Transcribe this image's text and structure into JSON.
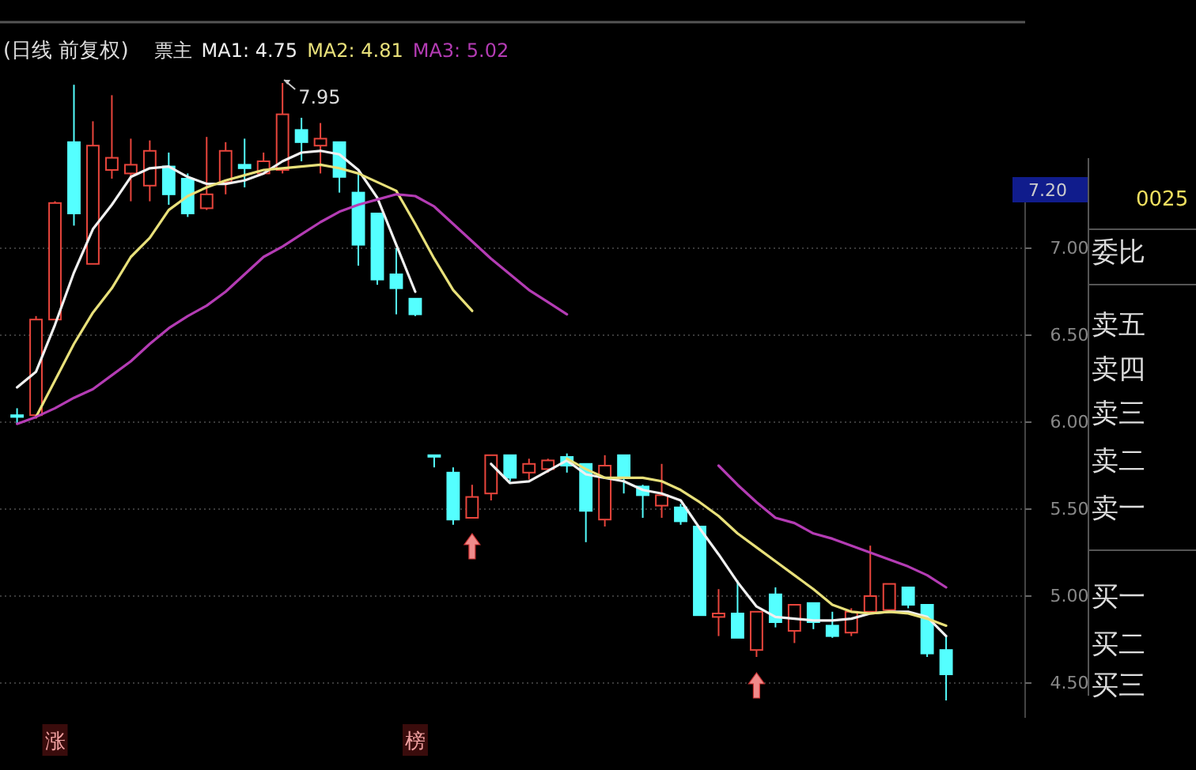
{
  "chart_data": {
    "type": "candlestick",
    "title": "(日线 前复权)",
    "categories": [
      null,
      null,
      null,
      null,
      null,
      null,
      null,
      null,
      null,
      null,
      null,
      null,
      null,
      null,
      null,
      null,
      null,
      null,
      null,
      null,
      null,
      null,
      null,
      null,
      null,
      null,
      null,
      null,
      null,
      null,
      null,
      null,
      null,
      null,
      null,
      null,
      null,
      null,
      null,
      null,
      null,
      null,
      null,
      null,
      null,
      null,
      null,
      null,
      null,
      null
    ],
    "ohlc": [
      [
        6.04,
        6.08,
        5.99,
        6.03
      ],
      [
        6.04,
        6.61,
        6.02,
        6.59
      ],
      [
        6.59,
        7.27,
        6.59,
        7.26
      ],
      [
        7.61,
        7.94,
        7.13,
        7.2
      ],
      [
        6.91,
        7.73,
        6.91,
        7.59
      ],
      [
        7.45,
        7.88,
        7.4,
        7.52
      ],
      [
        7.43,
        7.63,
        7.27,
        7.48
      ],
      [
        7.36,
        7.62,
        7.27,
        7.56
      ],
      [
        7.47,
        7.55,
        7.25,
        7.31
      ],
      [
        7.4,
        7.43,
        7.18,
        7.2
      ],
      [
        7.23,
        7.64,
        7.22,
        7.31
      ],
      [
        7.38,
        7.61,
        7.31,
        7.56
      ],
      [
        7.48,
        7.63,
        7.35,
        7.46
      ],
      [
        7.43,
        7.55,
        7.43,
        7.5
      ],
      [
        7.45,
        7.95,
        7.43,
        7.77
      ],
      [
        7.68,
        7.75,
        7.5,
        7.61
      ],
      [
        7.59,
        7.72,
        7.43,
        7.63
      ],
      [
        7.61,
        7.61,
        7.32,
        7.41
      ],
      [
        7.32,
        7.43,
        6.9,
        7.02
      ],
      [
        7.2,
        7.2,
        6.79,
        6.82
      ],
      [
        6.85,
        7.0,
        6.62,
        6.77
      ],
      [
        6.71,
        6.71,
        6.61,
        6.62
      ],
      [
        5.81,
        5.81,
        5.74,
        5.81
      ],
      [
        5.71,
        5.74,
        5.41,
        5.44
      ],
      [
        5.45,
        5.64,
        5.45,
        5.57
      ],
      [
        5.59,
        5.81,
        5.55,
        5.81
      ],
      [
        5.81,
        5.81,
        5.66,
        5.68
      ],
      [
        5.71,
        5.79,
        5.67,
        5.76
      ],
      [
        5.73,
        5.79,
        5.71,
        5.78
      ],
      [
        5.8,
        5.82,
        5.71,
        5.75
      ],
      [
        5.76,
        5.76,
        5.31,
        5.49
      ],
      [
        5.44,
        5.81,
        5.4,
        5.75
      ],
      [
        5.81,
        5.81,
        5.59,
        5.68
      ],
      [
        5.63,
        5.64,
        5.45,
        5.58
      ],
      [
        5.52,
        5.76,
        5.45,
        5.58
      ],
      [
        5.51,
        5.53,
        5.41,
        5.43
      ],
      [
        5.4,
        5.4,
        4.89,
        4.89
      ],
      [
        4.88,
        5.04,
        4.77,
        4.9
      ],
      [
        4.9,
        5.09,
        4.76,
        4.76
      ],
      [
        4.69,
        4.91,
        4.65,
        4.91
      ],
      [
        5.01,
        5.05,
        4.82,
        4.85
      ],
      [
        4.8,
        4.95,
        4.73,
        4.95
      ],
      [
        4.96,
        4.96,
        4.81,
        4.85
      ],
      [
        4.83,
        4.91,
        4.76,
        4.77
      ],
      [
        4.79,
        4.93,
        4.77,
        4.91
      ],
      [
        4.91,
        5.29,
        4.91,
        5.0
      ],
      [
        4.92,
        5.07,
        4.91,
        5.07
      ],
      [
        5.05,
        5.05,
        4.93,
        4.95
      ],
      [
        4.95,
        4.95,
        4.65,
        4.67
      ],
      [
        4.69,
        4.77,
        4.4,
        4.55
      ]
    ],
    "colors": [
      "#54ffff",
      "#e8453c",
      "#e8453c",
      "#54ffff",
      "#e8453c",
      "#e8453c",
      "#e8453c",
      "#e8453c",
      "#54ffff",
      "#54ffff",
      "#e8453c",
      "#e8453c",
      "#54ffff",
      "#e8453c",
      "#e8453c",
      "#54ffff",
      "#e8453c",
      "#54ffff",
      "#54ffff",
      "#54ffff",
      "#54ffff",
      "#54ffff",
      "#54ffff",
      "#54ffff",
      "#e8453c",
      "#e8453c",
      "#54ffff",
      "#e8453c",
      "#e8453c",
      "#54ffff",
      "#54ffff",
      "#e8453c",
      "#54ffff",
      "#54ffff",
      "#e8453c",
      "#54ffff",
      "#54ffff",
      "#e8453c",
      "#54ffff",
      "#e8453c",
      "#54ffff",
      "#e8453c",
      "#54ffff",
      "#54ffff",
      "#e8453c",
      "#e8453c",
      "#e8453c",
      "#54ffff",
      "#54ffff",
      "#54ffff"
    ],
    "series": [
      {
        "name": "MA1: 4.75",
        "type": "line",
        "color": "#f0f0f0",
        "values": [
          6.2,
          6.29,
          6.56,
          6.86,
          7.11,
          7.25,
          7.41,
          7.46,
          7.47,
          7.41,
          7.37,
          7.37,
          7.39,
          7.43,
          7.5,
          7.55,
          7.56,
          7.54,
          7.45,
          7.29,
          7.02,
          6.75,
          null,
          null,
          null,
          5.76,
          5.65,
          5.66,
          5.72,
          5.78,
          5.7,
          5.68,
          5.66,
          5.61,
          5.59,
          5.55,
          5.39,
          5.24,
          5.08,
          4.94,
          4.88,
          4.87,
          4.86,
          4.86,
          4.87,
          4.9,
          4.91,
          4.91,
          4.88,
          4.77
        ]
      },
      {
        "name": "MA2: 4.81",
        "type": "line",
        "color": "#e8e07a",
        "values": [
          null,
          6.03,
          6.24,
          6.45,
          6.63,
          6.77,
          6.95,
          7.06,
          7.22,
          7.3,
          7.35,
          7.39,
          7.42,
          7.45,
          7.46,
          7.47,
          7.48,
          7.46,
          7.43,
          7.38,
          7.33,
          7.14,
          6.94,
          6.76,
          6.64,
          null,
          null,
          null,
          null,
          5.79,
          5.73,
          5.68,
          5.68,
          5.68,
          5.66,
          5.61,
          5.54,
          5.46,
          5.36,
          5.28,
          5.2,
          5.12,
          5.04,
          4.95,
          4.91,
          4.9,
          4.91,
          4.9,
          4.87,
          4.83
        ]
      },
      {
        "name": "MA3: 5.02",
        "type": "line",
        "color": "#b43cb4",
        "values": [
          5.99,
          6.03,
          6.08,
          6.14,
          6.19,
          6.27,
          6.35,
          6.45,
          6.54,
          6.61,
          6.67,
          6.75,
          6.85,
          6.95,
          7.01,
          7.08,
          7.15,
          7.21,
          7.25,
          7.28,
          7.31,
          7.3,
          7.24,
          7.14,
          7.04,
          6.94,
          6.85,
          6.76,
          6.69,
          6.62,
          null,
          null,
          null,
          null,
          null,
          null,
          null,
          5.75,
          5.64,
          5.54,
          5.45,
          5.42,
          5.36,
          5.33,
          5.29,
          5.25,
          5.21,
          5.17,
          5.12,
          5.05
        ]
      }
    ],
    "ylim": [
      4.3,
      8.3
    ],
    "yticks": [
      {
        "value": 4.5,
        "label": "4.50"
      },
      {
        "value": 5.0,
        "label": "5.00"
      },
      {
        "value": 5.5,
        "label": "5.50"
      },
      {
        "value": 6.0,
        "label": "6.00"
      },
      {
        "value": 6.5,
        "label": "6.50"
      },
      {
        "value": 7.0,
        "label": "7.00"
      }
    ],
    "grid": "y",
    "legend": "top left",
    "annotations": [
      "票主",
      "7.95",
      "涨",
      "榜",
      "7.20",
      "0025",
      "委比",
      "卖五",
      "卖四",
      "卖三",
      "卖二",
      "卖一",
      "买一",
      "买二",
      "买三"
    ]
  }
}
